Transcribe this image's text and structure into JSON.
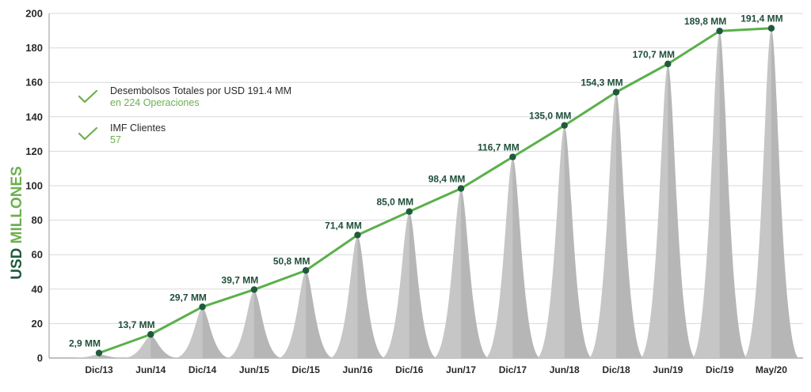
{
  "chart_data": {
    "type": "line",
    "ylabel_part1": "USD",
    "ylabel_part2": "MILLONES",
    "ylim": [
      0,
      200
    ],
    "yticks": [
      "0",
      "20",
      "40",
      "60",
      "80",
      "100",
      "120",
      "140",
      "160",
      "180",
      "200"
    ],
    "grid": "horizontal",
    "categories": [
      "Dic/13",
      "Jun/14",
      "Dic/14",
      "Jun/15",
      "Dic/15",
      "Jun/16",
      "Dic/16",
      "Jun/17",
      "Dic/17",
      "Jun/18",
      "Dic/18",
      "Jun/19",
      "Dic/19",
      "May/20"
    ],
    "values": [
      2.9,
      13.7,
      29.7,
      39.7,
      50.8,
      71.4,
      85.0,
      98.4,
      116.7,
      135.0,
      154.3,
      170.7,
      189.8,
      191.4
    ],
    "data_labels": [
      "2,9 MM",
      "13,7 MM",
      "29,7 MM",
      "39,7 MM",
      "50,8 MM",
      "71,4 MM",
      "85,0 MM",
      "98,4 MM",
      "116,7 MM",
      "135,0 MM",
      "154,3 MM",
      "170,7 MM",
      "189,8 MM",
      "191,4 MM"
    ],
    "colors": {
      "line": "#5ab04a",
      "marker": "#1f5a3c",
      "peak": "#c6c6c6",
      "peak_shade": "#a9a9a9",
      "ylabel_dark": "#1f5a3c",
      "ylabel_light": "#6cb04f"
    }
  },
  "legend": {
    "items": [
      {
        "icon": "check-icon",
        "title": "Desembolsos Totales por USD 191.4 MM",
        "sub": "en 224 Operaciones"
      },
      {
        "icon": "check-icon",
        "title": "IMF Clientes",
        "sub": "57"
      }
    ]
  }
}
